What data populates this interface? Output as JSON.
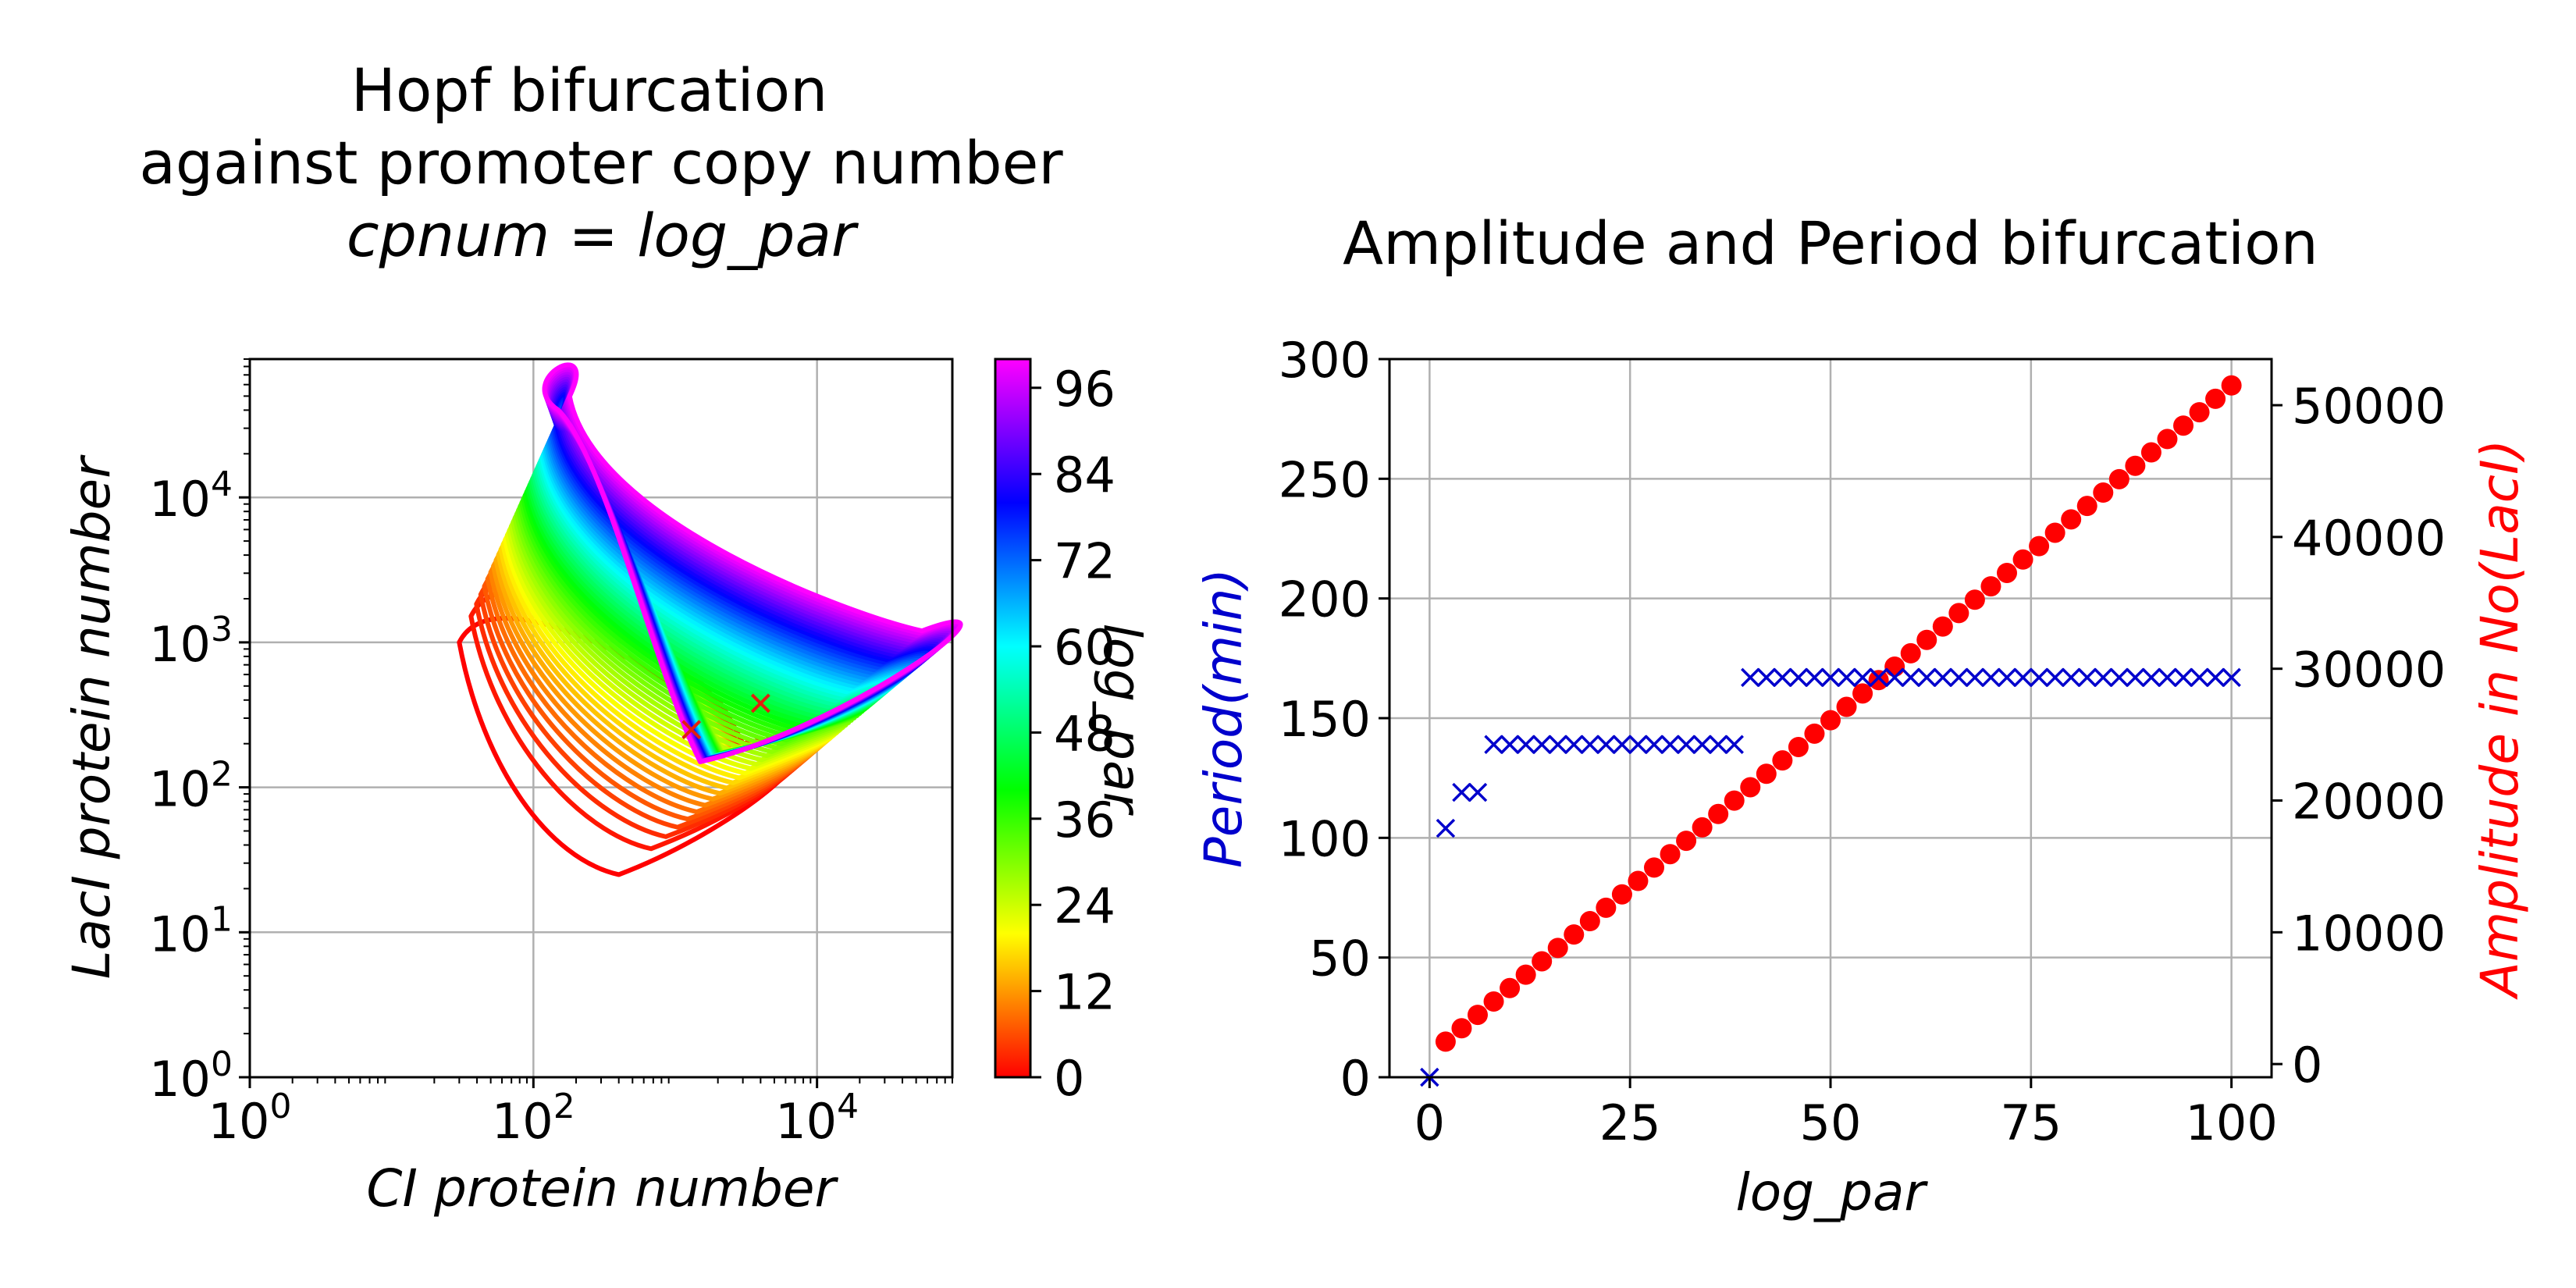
{
  "chart_data": [
    {
      "type": "line",
      "title_lines": [
        "Hopf bifurcation",
        "against promoter copy number"
      ],
      "title_math": "cpnum = log_par",
      "xlabel": "CI protein number",
      "ylabel": "LacI protein number",
      "x_scale": "log",
      "y_scale": "log",
      "xlim": [
        1,
        90000
      ],
      "ylim": [
        1,
        90000
      ],
      "x_ticks": [
        {
          "base": "10",
          "exp": "0"
        },
        {
          "base": "10",
          "exp": "2"
        },
        {
          "base": "10",
          "exp": "4"
        }
      ],
      "y_ticks": [
        {
          "base": "10",
          "exp": "0"
        },
        {
          "base": "10",
          "exp": "1"
        },
        {
          "base": "10",
          "exp": "2"
        },
        {
          "base": "10",
          "exp": "3"
        },
        {
          "base": "10",
          "exp": "4"
        }
      ],
      "grid": true,
      "colorbar": {
        "label": "log_par",
        "range": [
          0,
          100
        ],
        "ticks": [
          "0",
          "12",
          "24",
          "36",
          "48",
          "60",
          "72",
          "84",
          "96"
        ],
        "colormap": [
          "#ff0000",
          "#ff8000",
          "#ffff00",
          "#80ff00",
          "#00ff00",
          "#00ff80",
          "#00ffff",
          "#0080ff",
          "#0000ff",
          "#8000ff",
          "#ff00ff"
        ]
      },
      "series_description": "one closed limit-cycle orbit per log_par value from 0 to 100; red (low log_par) cycles are small, magenta (high log_par) cycles are large",
      "cycle_anchor_points": {
        "low_log_par": [
          [
            30,
            1000
          ],
          [
            400,
            25
          ],
          [
            3000,
            200
          ],
          [
            1000,
            500
          ]
        ],
        "high_log_par": [
          [
            180,
            50000
          ],
          [
            55000,
            1200
          ],
          [
            1500,
            150
          ],
          [
            150,
            40000
          ]
        ]
      },
      "initial_markers": [
        [
          1300,
          250
        ],
        [
          4000,
          380
        ]
      ]
    },
    {
      "type": "scatter",
      "title": "Amplitude and Period bifurcation",
      "xlabel": "log_par",
      "ylabel_left": "Period(min)",
      "ylabel_right": "Amplitude in No(LacI)",
      "xlim": [
        -5,
        105
      ],
      "ylim_left": [
        0,
        300
      ],
      "ylim_right": [
        -1000,
        53500
      ],
      "x_ticks": [
        "0",
        "25",
        "50",
        "75",
        "100"
      ],
      "y_ticks_left": [
        "0",
        "50",
        "100",
        "150",
        "200",
        "250",
        "300"
      ],
      "y_ticks_right": [
        "0",
        "10000",
        "20000",
        "30000",
        "40000",
        "50000"
      ],
      "grid": true,
      "series": [
        {
          "name": "Period",
          "axis": "left",
          "marker": "x",
          "color": "#0000cc",
          "x": [
            0,
            2,
            4,
            6,
            8,
            10,
            12,
            14,
            16,
            18,
            20,
            22,
            24,
            26,
            28,
            30,
            32,
            34,
            36,
            38,
            40,
            42,
            44,
            46,
            48,
            50,
            52,
            54,
            56,
            58,
            60,
            62,
            64,
            66,
            68,
            70,
            72,
            74,
            76,
            78,
            80,
            82,
            84,
            86,
            88,
            90,
            92,
            94,
            96,
            98,
            100
          ],
          "y": [
            0,
            104,
            119,
            119,
            139,
            139,
            139,
            139,
            139,
            139,
            139,
            139,
            139,
            139,
            139,
            139,
            139,
            139,
            139,
            139,
            167,
            167,
            167,
            167,
            167,
            167,
            167,
            167,
            167,
            167,
            167,
            167,
            167,
            167,
            167,
            167,
            167,
            167,
            167,
            167,
            167,
            167,
            167,
            167,
            167,
            167,
            167,
            167,
            167,
            167,
            167
          ]
        },
        {
          "name": "Amplitude",
          "axis": "right",
          "marker": "circle",
          "color": "#ff0000",
          "x_start": 2,
          "x_step": 2,
          "count": 50,
          "y_start": 1700,
          "y_end": 51500
        }
      ]
    }
  ]
}
